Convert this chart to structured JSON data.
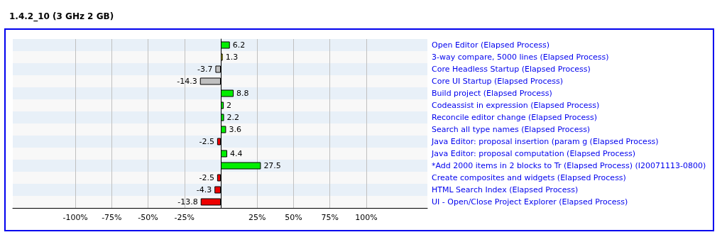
{
  "chart_data": {
    "type": "bar",
    "orientation": "horizontal",
    "title": "1.4.2_10 (3 GHz 2 GB)",
    "categories": [
      "Open Editor (Elapsed Process)",
      "3-way compare, 5000 lines (Elapsed Process)",
      "Core Headless Startup (Elapsed Process)",
      "Core UI Startup (Elapsed Process)",
      "Build project (Elapsed Process)",
      "Codeassist in expression (Elapsed Process)",
      "Reconcile editor change (Elapsed Process)",
      "Search all type names (Elapsed Process)",
      "Java Editor: proposal insertion (param g (Elapsed Process)",
      "Java Editor: proposal computation (Elapsed Process)",
      "*Add 2000 items in 2 blocks to Tr (Elapsed Process) (I20071113-0800)",
      "Create composites and widgets (Elapsed Process)",
      "HTML Search Index (Elapsed Process)",
      "UI - Open/Close Project Explorer (Elapsed Process)"
    ],
    "values": [
      6.2,
      1.3,
      -3.7,
      -14.3,
      8.8,
      2,
      2.2,
      3.6,
      -2.5,
      4.4,
      27.5,
      -2.5,
      -4.3,
      -13.8
    ],
    "colors": [
      "#00ee00",
      "#eeee00",
      "#c0c0c0",
      "#c0c0c0",
      "#00ee00",
      "#00ee00",
      "#00ee00",
      "#00ee00",
      "#ee0000",
      "#00ee00",
      "#00ee00",
      "#ee0000",
      "#ee0000",
      "#ee0000"
    ],
    "data_labels": true,
    "xlim": [
      -143,
      142
    ],
    "xticks": [
      {
        "value": -100,
        "label": "-100%"
      },
      {
        "value": -75,
        "label": "-75%"
      },
      {
        "value": -50,
        "label": "-50%"
      },
      {
        "value": -25,
        "label": "-25%"
      },
      {
        "value": 25,
        "label": "25%"
      },
      {
        "value": 50,
        "label": "50%"
      },
      {
        "value": 75,
        "label": "75%"
      },
      {
        "value": 100,
        "label": "100%"
      }
    ],
    "grid": "x"
  }
}
